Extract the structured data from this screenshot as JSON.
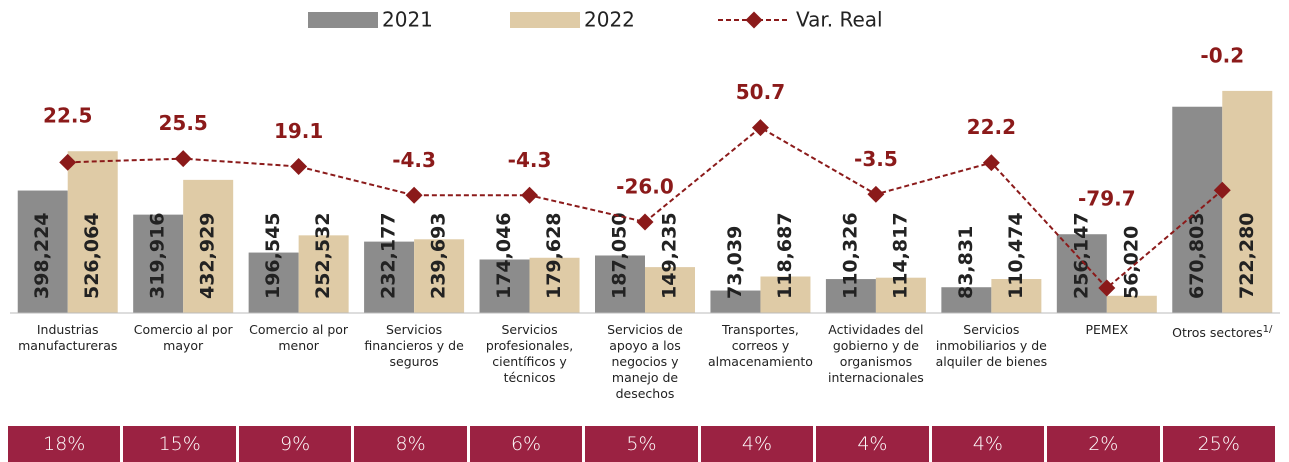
{
  "chart_data": {
    "type": "bar",
    "categories": [
      "Industrias manufactureras",
      "Comercio al por mayor",
      "Comercio al por menor",
      "Servicios financieros y de seguros",
      "Servicios profesionales, científicos y técnicos",
      "Servicios de apoyo a los negocios y manejo de desechos",
      "Transportes, correos y almacenamiento",
      "Actividades del gobierno y de organismos internacionales",
      "Servicios inmobiliarios y de alquiler de bienes",
      "PEMEX",
      "Otros sectores"
    ],
    "category_note": "1/",
    "series": [
      {
        "name": "2021",
        "color": "#8c8c8c",
        "values": [
          398224,
          319916,
          196545,
          232177,
          174046,
          187050,
          73039,
          110326,
          83831,
          256147,
          670803
        ],
        "value_labels": [
          "398,224",
          "319,916",
          "196,545",
          "232,177",
          "174,046",
          "187,050",
          "73,039",
          "110,326",
          "83,831",
          "256,147",
          "670,803"
        ]
      },
      {
        "name": "2022",
        "color": "#dfcba6",
        "values": [
          526064,
          432929,
          252532,
          239693,
          179628,
          149235,
          118687,
          114817,
          110474,
          56020,
          722280
        ],
        "value_labels": [
          "526,064",
          "432,929",
          "252,532",
          "239,693",
          "179,628",
          "149,235",
          "118,687",
          "114,817",
          "110,474",
          "56,020",
          "722,280"
        ]
      },
      {
        "name": "Var. Real",
        "type": "line",
        "axis": "y2",
        "color": "#8b1a1a",
        "values": [
          22.5,
          25.5,
          19.1,
          -4.3,
          -4.3,
          -26.0,
          50.7,
          -3.5,
          22.2,
          -79.7,
          -0.2
        ],
        "value_labels": [
          "22.5",
          "25.5",
          "19.1",
          "-4.3",
          "-4.3",
          "-26.0",
          "50.7",
          "-3.5",
          "22.2",
          "-79.7",
          "-0.2"
        ]
      }
    ],
    "ylim": [
      0,
      800000
    ],
    "y2lim": [
      -100,
      100
    ],
    "legend": "top",
    "shares": {
      "color": "#9b2242",
      "values": [
        18,
        15,
        9,
        8,
        6,
        5,
        4,
        4,
        4,
        2,
        25
      ],
      "value_labels": [
        "18%",
        "15%",
        "9%",
        "8%",
        "6%",
        "5%",
        "4%",
        "4%",
        "4%",
        "2%",
        "25%"
      ]
    }
  }
}
